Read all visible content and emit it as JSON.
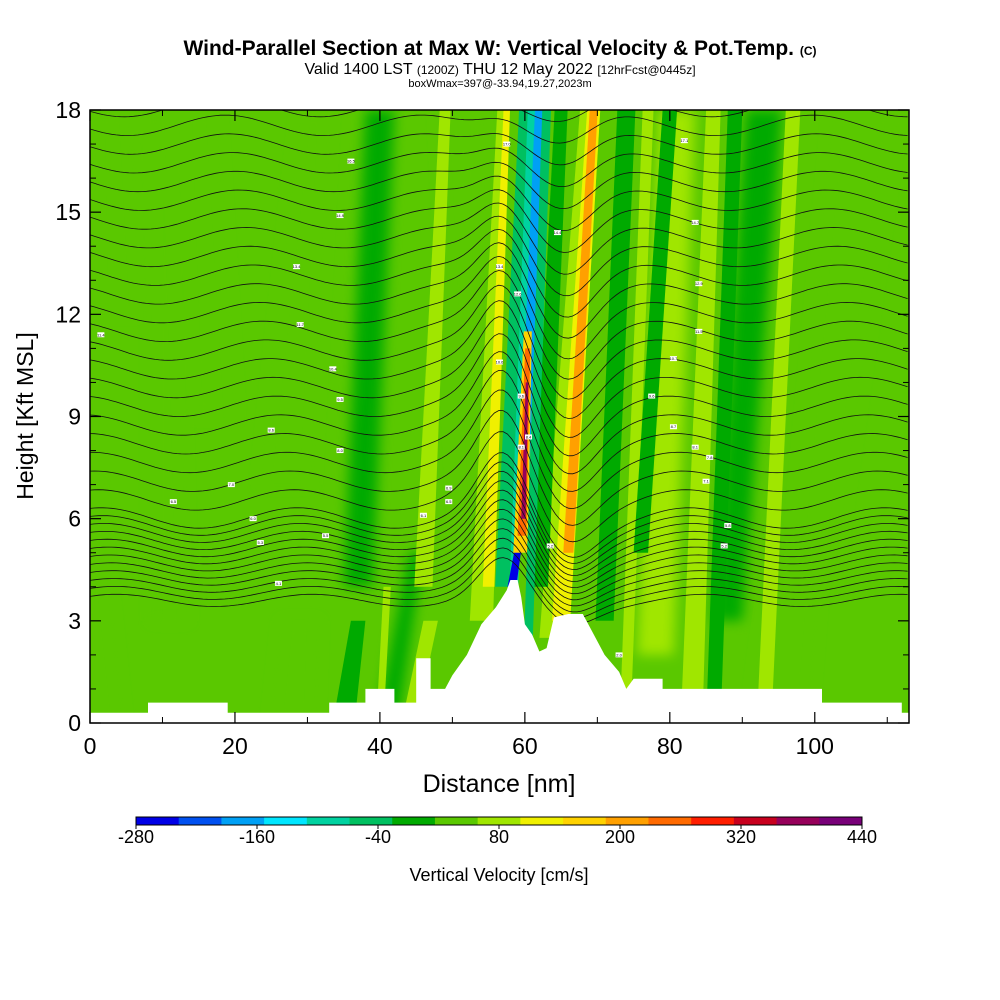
{
  "title": {
    "main": "Wind-Parallel Section at Max W: Vertical Velocity & Pot.Temp.",
    "copyright": "(C)",
    "valid_prefix": "Valid 1400 LST",
    "valid_utc": "(1200Z)",
    "valid_date": "THU 12 May 2022",
    "forecast": "[12hrFcst@0445z]",
    "box_info": "boxWmax=397@-33.94,19.27,2023m"
  },
  "chart_data": {
    "type": "heatmap",
    "xlabel": "Distance [nm]",
    "ylabel": "Height [Kft MSL]",
    "xlim": [
      0,
      113
    ],
    "ylim": [
      0,
      18
    ],
    "x_ticks": [
      0,
      20,
      40,
      60,
      80,
      100
    ],
    "y_ticks": [
      0,
      3,
      6,
      9,
      12,
      15,
      18
    ],
    "colorbar": {
      "label": "Vertical Velocity [cm/s]",
      "min": -280,
      "max": 440,
      "step": 40,
      "tick_labels": [
        "-280",
        "-160",
        "-40",
        "80",
        "200",
        "320",
        "440"
      ],
      "colors": [
        "#0000e6",
        "#0050f0",
        "#00a0f5",
        "#00e6ff",
        "#00d2a0",
        "#00c060",
        "#00aa00",
        "#5ac800",
        "#a0e600",
        "#f0f000",
        "#ffd200",
        "#ffa000",
        "#ff6a00",
        "#ff1e00",
        "#c8001e",
        "#96005a",
        "#780078"
      ]
    },
    "terrain_profile": [
      [
        0,
        0.3
      ],
      [
        8,
        0.3
      ],
      [
        8,
        0.6
      ],
      [
        19,
        0.6
      ],
      [
        19,
        0.3
      ],
      [
        33,
        0.3
      ],
      [
        33,
        0.6
      ],
      [
        38,
        0.6
      ],
      [
        38,
        1.0
      ],
      [
        42,
        1.0
      ],
      [
        42,
        0.6
      ],
      [
        45,
        0.6
      ],
      [
        45,
        1.9
      ],
      [
        47,
        1.9
      ],
      [
        47,
        1.0
      ],
      [
        49,
        1.0
      ],
      [
        50,
        1.4
      ],
      [
        52,
        2.0
      ],
      [
        54,
        2.9
      ],
      [
        56,
        3.4
      ],
      [
        57.5,
        3.9
      ],
      [
        58,
        4.2
      ],
      [
        59,
        4.2
      ],
      [
        59.5,
        3.7
      ],
      [
        60,
        2.9
      ],
      [
        61,
        2.6
      ],
      [
        62,
        2.1
      ],
      [
        63,
        2.2
      ],
      [
        64,
        3.1
      ],
      [
        66,
        3.2
      ],
      [
        68,
        3.2
      ],
      [
        69,
        2.8
      ],
      [
        71,
        2.0
      ],
      [
        73,
        1.5
      ],
      [
        74,
        1.0
      ],
      [
        75,
        1.3
      ],
      [
        79,
        1.3
      ],
      [
        79,
        1.0
      ],
      [
        101,
        1.0
      ],
      [
        101,
        0.6
      ],
      [
        112,
        0.6
      ],
      [
        112,
        0.3
      ],
      [
        113,
        0.3
      ]
    ],
    "theta_contour_labels": [
      "11.4",
      "16.5",
      "14.9",
      "13.4",
      "11.7",
      "10.4",
      "9.5",
      "8.6",
      "8.0",
      "7.0",
      "6.5",
      "6.0",
      "5.3",
      "5.5",
      "4.1",
      "6.9",
      "6.5",
      "6.1",
      "17.0",
      "13.4",
      "12.6",
      "10.6",
      "9.6",
      "8.1",
      "8.4",
      "5.2",
      "14.4",
      "17.1",
      "14.7",
      "12.9",
      "11.5",
      "10.7",
      "9.6",
      "8.7",
      "8.1",
      "7.8",
      "7.1",
      "5.8",
      "5.2",
      "2.0"
    ]
  }
}
